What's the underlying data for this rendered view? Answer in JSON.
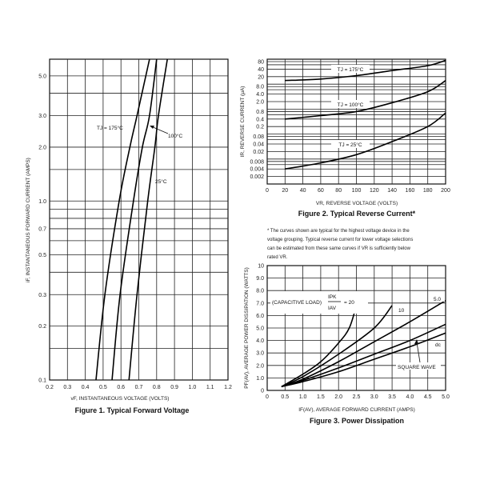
{
  "chart_data": [
    {
      "id": "fig1",
      "type": "line",
      "title": "Figure 1. Typical Forward Voltage",
      "xlabel": "vF, INSTANTANEOUS VOLTAGE (VOLTS)",
      "ylabel": "iF, INSTANTANEOUS FORWARD CURRENT (AMPS)",
      "xlim": [
        0.2,
        1.2
      ],
      "ylim": [
        0.1,
        6.2
      ],
      "yscale": "log",
      "grid": true,
      "xticks": [
        "0.2",
        "0.3",
        "0.4",
        "0.5",
        "0.6",
        "0.7",
        "0.8",
        "0.9",
        "1.0",
        "1.1",
        "1.2"
      ],
      "yticks": [
        "0.1",
        "0.2",
        "0.3",
        "0.5",
        "0.7",
        "1.0",
        "2.0",
        "3.0",
        "5.0"
      ],
      "series": [
        {
          "name": "TJ = 175°C",
          "x": [
            0.46,
            0.51,
            0.59,
            0.65,
            0.69,
            0.76
          ],
          "y": [
            0.1,
            0.3,
            1.0,
            2.0,
            3.0,
            6.2
          ]
        },
        {
          "name": "100°C",
          "x": [
            0.55,
            0.595,
            0.67,
            0.72,
            0.76,
            0.8
          ],
          "y": [
            0.1,
            0.3,
            1.0,
            2.0,
            3.0,
            6.2
          ]
        },
        {
          "name": "25°C",
          "x": [
            0.645,
            0.69,
            0.75,
            0.79,
            0.81,
            0.86
          ],
          "y": [
            0.1,
            0.3,
            1.0,
            2.0,
            3.0,
            6.2
          ]
        }
      ]
    },
    {
      "id": "fig2",
      "type": "line",
      "title": "Figure 2. Typical Reverse Current*",
      "xlabel": "VR, REVERSE VOLTAGE (VOLTS)",
      "ylabel": "IR, REVERSE CURRENT (μA)",
      "xlim": [
        0,
        200
      ],
      "ylim": [
        0.001,
        100
      ],
      "yscale": "log",
      "grid": true,
      "xticks": [
        "0",
        "20",
        "40",
        "60",
        "80",
        "100",
        "120",
        "140",
        "160",
        "180",
        "200"
      ],
      "yticks": [
        "80",
        "40",
        "20",
        "8.0",
        "4.0",
        "2.0",
        "0.8",
        "0.4",
        "0.2",
        "0.08",
        "0.04",
        "0.02",
        "0.008",
        "0.004",
        "0.002"
      ],
      "series": [
        {
          "name": "TJ = 175°C",
          "x": [
            20,
            60,
            100,
            140,
            180,
            200
          ],
          "y": [
            14,
            16,
            22,
            35,
            55,
            90
          ]
        },
        {
          "name": "TJ = 100°C",
          "x": [
            20,
            60,
            100,
            140,
            180,
            200
          ],
          "y": [
            0.4,
            0.55,
            0.8,
            1.8,
            5,
            14
          ]
        },
        {
          "name": "TJ = 25°C",
          "x": [
            20,
            60,
            100,
            140,
            180,
            200
          ],
          "y": [
            0.004,
            0.007,
            0.015,
            0.05,
            0.2,
            0.7
          ]
        }
      ],
      "footnote": [
        "* The curves shown are typical for the highest voltage device in the",
        "voltage grouping. Typical reverse current for lower voltage selections",
        "can be estimated from these same curves if VR is sufficiently below",
        "rated VR."
      ]
    },
    {
      "id": "fig3",
      "type": "line",
      "title": "Figure 3. Power Dissipation",
      "xlabel": "IF(AV), AVERAGE FORWARD CURRENT (AMPS)",
      "ylabel": "PF(AV), AVERAGE POWER DISSIPATION (WATTS)",
      "xlim": [
        0,
        5
      ],
      "ylim": [
        0,
        10
      ],
      "grid": true,
      "xticks": [
        "0",
        "0.5",
        "1.0",
        "1.5",
        "2.0",
        "2.5",
        "3.0",
        "3.5",
        "4.0",
        "4.5",
        "5.0"
      ],
      "yticks": [
        "0",
        "1.0",
        "2.0",
        "3.0",
        "4.0",
        "5.0",
        "6.0",
        "7.0",
        "8.0",
        "9.0",
        "10"
      ],
      "series": [
        {
          "name": "20",
          "x": [
            0.4,
            1.0,
            1.5,
            2.0,
            2.3,
            2.5
          ],
          "y": [
            0.3,
            1.3,
            2.3,
            3.8,
            5.0,
            6.8
          ]
        },
        {
          "name": "10",
          "x": [
            0.4,
            1.0,
            2.0,
            3.0,
            3.5
          ],
          "y": [
            0.3,
            1.1,
            2.9,
            5.0,
            6.8
          ]
        },
        {
          "name": "5.0",
          "x": [
            0.4,
            1,
            2,
            3,
            4,
            5
          ],
          "y": [
            0.3,
            0.9,
            2.3,
            3.9,
            5.5,
            7.2
          ]
        },
        {
          "name": "SQUARE WAVE",
          "x": [
            0.4,
            1,
            2,
            3,
            4,
            5
          ],
          "y": [
            0.3,
            0.8,
            1.8,
            2.9,
            4.0,
            5.3
          ]
        },
        {
          "name": "dc",
          "x": [
            0.4,
            1,
            2,
            3,
            4,
            5
          ],
          "y": [
            0.3,
            0.7,
            1.5,
            2.5,
            3.5,
            4.6
          ]
        }
      ],
      "annotations": {
        "capacitive": "(CAPACITIVE LOAD)",
        "ipk": "IPK",
        "iav": "IAV",
        "equals20": "= 20"
      }
    }
  ]
}
